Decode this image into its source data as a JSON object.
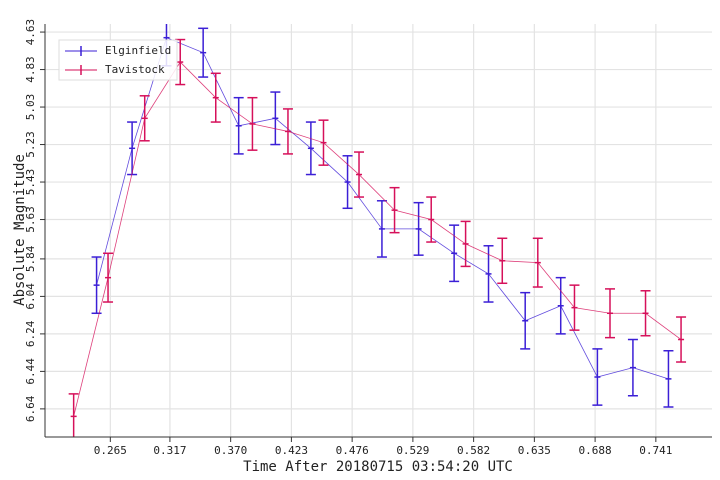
{
  "chart_data": {
    "type": "errorbar-line",
    "xlabel": "Time After 20180715 03:54:20 UTC",
    "ylabel": "Absolute Magnitude",
    "xlim": [
      0.208,
      0.79
    ],
    "ylim": [
      6.79,
      4.587
    ],
    "xticks": [
      0.265,
      0.317,
      {
        "value": 0.37,
        "label": "0.370"
      },
      0.423,
      0.476,
      0.529,
      0.582,
      0.635,
      0.688,
      0.741
    ],
    "yticks": [
      4.63,
      4.83,
      5.03,
      5.23,
      5.43,
      5.63,
      5.84,
      6.04,
      6.24,
      6.44,
      6.64
    ],
    "grid": true,
    "legend": "upper-left",
    "series": [
      {
        "name": "Elginfield",
        "color": "#3b1fd6",
        "x": [
          0.253,
          0.284,
          0.314,
          0.346,
          0.377,
          0.409,
          0.44,
          0.472,
          0.502,
          0.534,
          0.565,
          0.595,
          0.627,
          0.658,
          0.69,
          0.721,
          0.752
        ],
        "values": [
          5.98,
          5.25,
          4.66,
          4.74,
          5.13,
          5.09,
          5.25,
          5.43,
          5.68,
          5.68,
          5.81,
          5.92,
          6.17,
          6.09,
          6.47,
          6.42,
          6.48
        ],
        "errors": [
          0.15,
          0.14,
          0.15,
          0.13,
          0.15,
          0.14,
          0.14,
          0.14,
          0.15,
          0.14,
          0.15,
          0.15,
          0.15,
          0.15,
          0.15,
          0.15,
          0.15
        ]
      },
      {
        "name": "Tavistock",
        "color": "#d6105a",
        "x": [
          0.233,
          0.263,
          0.295,
          0.326,
          0.357,
          0.389,
          0.42,
          0.451,
          0.482,
          0.513,
          0.545,
          0.575,
          0.607,
          0.638,
          0.67,
          0.701,
          0.732,
          0.763
        ],
        "values": [
          6.68,
          5.94,
          5.09,
          4.79,
          4.98,
          5.12,
          5.16,
          5.22,
          5.39,
          5.58,
          5.63,
          5.76,
          5.85,
          5.86,
          6.1,
          6.13,
          6.13,
          6.27
        ],
        "errors": [
          0.12,
          0.13,
          0.12,
          0.12,
          0.13,
          0.14,
          0.12,
          0.12,
          0.12,
          0.12,
          0.12,
          0.12,
          0.12,
          0.13,
          0.12,
          0.13,
          0.12,
          0.12
        ]
      }
    ]
  }
}
